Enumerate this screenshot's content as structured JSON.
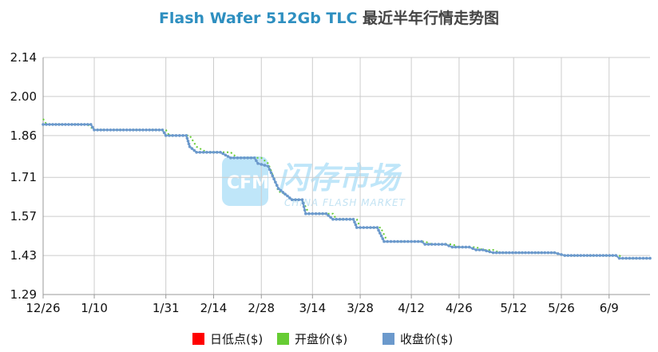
{
  "chart_data": {
    "type": "line",
    "title_en": "Flash Wafer 512Gb TLC",
    "title_cn": "最近半年行情走势图",
    "xlabel": "",
    "ylabel": "",
    "ylim": [
      1.29,
      2.14
    ],
    "yticks": [
      "2.14",
      "2.00",
      "1.86",
      "1.71",
      "1.57",
      "1.43",
      "1.29"
    ],
    "xlim": [
      "2023-12-26",
      "2024-06-21"
    ],
    "xticks": [
      {
        "date": "2023-12-26",
        "label": "12/26"
      },
      {
        "date": "2024-01-10",
        "label": "1/10"
      },
      {
        "date": "2024-01-31",
        "label": "1/31"
      },
      {
        "date": "2024-02-14",
        "label": "2/14"
      },
      {
        "date": "2024-02-28",
        "label": "2/28"
      },
      {
        "date": "2024-03-14",
        "label": "3/14"
      },
      {
        "date": "2024-03-28",
        "label": "3/28"
      },
      {
        "date": "2024-04-12",
        "label": "4/12"
      },
      {
        "date": "2024-04-26",
        "label": "4/26"
      },
      {
        "date": "2024-05-12",
        "label": "5/12"
      },
      {
        "date": "2024-05-26",
        "label": "5/26"
      },
      {
        "date": "2024-06-09",
        "label": "6/9"
      }
    ],
    "grid": true,
    "legend_position": "bottom",
    "series": [
      {
        "name": "日低点($)",
        "color": "#ff0000",
        "points": []
      },
      {
        "name": "开盘价($)",
        "color": "#66cc33",
        "points": [
          [
            "2023-12-26",
            1.92
          ],
          [
            "2023-12-27",
            1.9
          ],
          [
            "2024-01-08",
            1.9
          ],
          [
            "2024-01-10",
            1.88
          ],
          [
            "2024-01-31",
            1.88
          ],
          [
            "2024-02-01",
            1.86
          ],
          [
            "2024-02-07",
            1.86
          ],
          [
            "2024-02-09",
            1.82
          ],
          [
            "2024-02-12",
            1.8
          ],
          [
            "2024-02-19",
            1.8
          ],
          [
            "2024-02-21",
            1.78
          ],
          [
            "2024-02-28",
            1.78
          ],
          [
            "2024-03-01",
            1.76
          ],
          [
            "2024-03-02",
            1.73
          ],
          [
            "2024-03-04",
            1.66
          ],
          [
            "2024-03-06",
            1.65
          ],
          [
            "2024-03-08",
            1.63
          ],
          [
            "2024-03-11",
            1.63
          ],
          [
            "2024-03-13",
            1.58
          ],
          [
            "2024-03-20",
            1.58
          ],
          [
            "2024-03-21",
            1.56
          ],
          [
            "2024-03-27",
            1.56
          ],
          [
            "2024-03-28",
            1.53
          ],
          [
            "2024-04-03",
            1.53
          ],
          [
            "2024-04-05",
            1.48
          ],
          [
            "2024-04-16",
            1.48
          ],
          [
            "2024-04-18",
            1.47
          ],
          [
            "2024-04-24",
            1.47
          ],
          [
            "2024-04-26",
            1.46
          ],
          [
            "2024-05-01",
            1.46
          ],
          [
            "2024-05-03",
            1.45
          ],
          [
            "2024-05-06",
            1.45
          ],
          [
            "2024-05-08",
            1.44
          ],
          [
            "2024-05-24",
            1.44
          ],
          [
            "2024-05-27",
            1.43
          ],
          [
            "2024-06-12",
            1.43
          ],
          [
            "2024-06-13",
            1.42
          ],
          [
            "2024-06-21",
            1.42
          ]
        ]
      },
      {
        "name": "收盘价($)",
        "color": "#6b99cc",
        "points": [
          [
            "2023-12-26",
            1.9
          ],
          [
            "2024-01-09",
            1.9
          ],
          [
            "2024-01-10",
            1.88
          ],
          [
            "2024-01-30",
            1.88
          ],
          [
            "2024-01-31",
            1.86
          ],
          [
            "2024-02-06",
            1.86
          ],
          [
            "2024-02-07",
            1.82
          ],
          [
            "2024-02-09",
            1.8
          ],
          [
            "2024-02-16",
            1.8
          ],
          [
            "2024-02-19",
            1.78
          ],
          [
            "2024-02-26",
            1.78
          ],
          [
            "2024-02-27",
            1.76
          ],
          [
            "2024-03-01",
            1.75
          ],
          [
            "2024-03-04",
            1.67
          ],
          [
            "2024-03-06",
            1.65
          ],
          [
            "2024-03-08",
            1.63
          ],
          [
            "2024-03-11",
            1.63
          ],
          [
            "2024-03-12",
            1.58
          ],
          [
            "2024-03-18",
            1.58
          ],
          [
            "2024-03-20",
            1.56
          ],
          [
            "2024-03-26",
            1.56
          ],
          [
            "2024-03-27",
            1.53
          ],
          [
            "2024-04-02",
            1.53
          ],
          [
            "2024-04-04",
            1.48
          ],
          [
            "2024-04-15",
            1.48
          ],
          [
            "2024-04-16",
            1.47
          ],
          [
            "2024-04-22",
            1.47
          ],
          [
            "2024-04-24",
            1.46
          ],
          [
            "2024-04-29",
            1.46
          ],
          [
            "2024-05-01",
            1.45
          ],
          [
            "2024-05-03",
            1.45
          ],
          [
            "2024-05-06",
            1.44
          ],
          [
            "2024-05-24",
            1.44
          ],
          [
            "2024-05-27",
            1.43
          ],
          [
            "2024-06-11",
            1.43
          ],
          [
            "2024-06-12",
            1.42
          ],
          [
            "2024-06-21",
            1.42
          ]
        ]
      }
    ]
  },
  "watermark": {
    "logo": "CFM",
    "cn": "闪存市场",
    "en": "CHINA FLASH MARKET",
    "color": "#bfe6f9"
  }
}
